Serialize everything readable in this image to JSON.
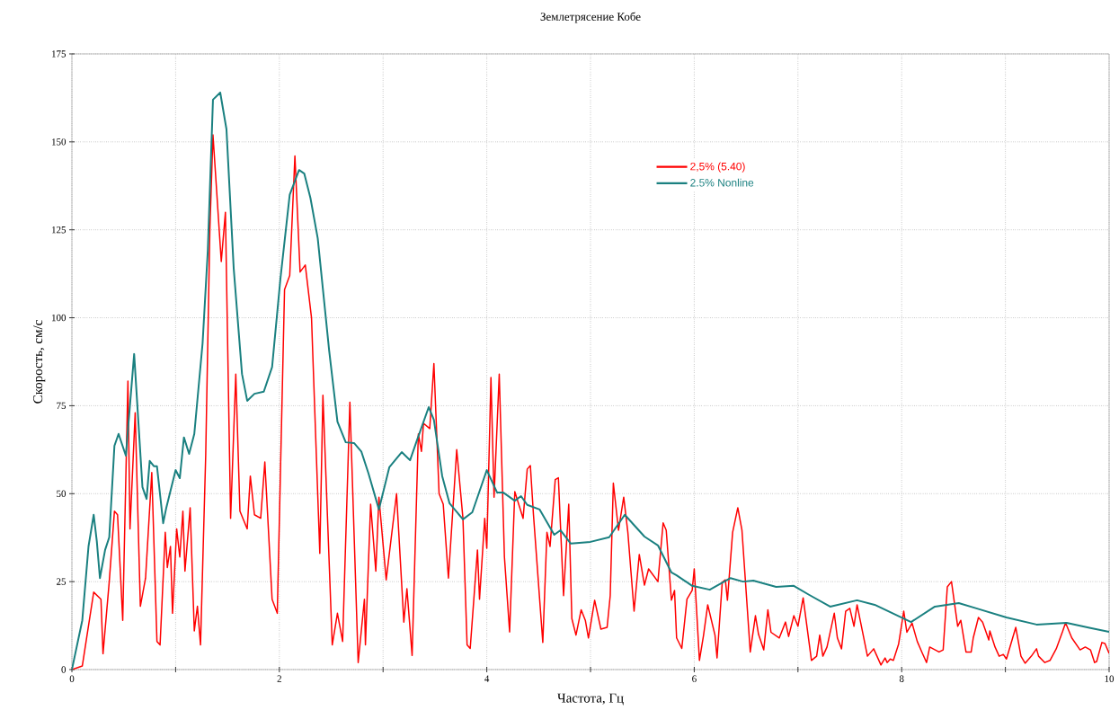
{
  "chart_data": {
    "type": "line",
    "title": "Землетрясение Кобе",
    "xlabel": "Частота, Гц",
    "ylabel": "Скорость, см/с",
    "xlim": [
      0,
      10
    ],
    "ylim": [
      0,
      175
    ],
    "xticks": [
      0,
      {
        "value": 1,
        "label": null
      },
      2,
      {
        "value": 3,
        "label": null
      },
      4,
      {
        "value": 5,
        "label": null
      },
      6,
      {
        "value": 7,
        "label": null
      },
      8,
      {
        "value": 9,
        "label": null
      },
      10
    ],
    "yticks": [
      0,
      25,
      50,
      75,
      100,
      125,
      150,
      175
    ],
    "grid": true,
    "legend": "top right",
    "marker": "none",
    "line_style": "solid",
    "series": [
      {
        "name": "2,5% (5.40)",
        "color": "#ff0000",
        "x": [
          0,
          0.1,
          0.21,
          0.28,
          0.3,
          0.36,
          0.41,
          0.44,
          0.49,
          0.54,
          0.56,
          0.61,
          0.66,
          0.71,
          0.77,
          0.82,
          0.85,
          0.9,
          0.92,
          0.95,
          0.97,
          1.01,
          1.04,
          1.07,
          1.09,
          1.14,
          1.18,
          1.21,
          1.24,
          1.29,
          1.33,
          1.36,
          1.44,
          1.48,
          1.53,
          1.58,
          1.62,
          1.69,
          1.72,
          1.76,
          1.82,
          1.86,
          1.93,
          1.98,
          2.05,
          2.1,
          2.15,
          2.2,
          2.25,
          2.31,
          2.39,
          2.42,
          2.51,
          2.56,
          2.61,
          2.68,
          2.76,
          2.82,
          2.83,
          2.88,
          2.93,
          2.96,
          3.03,
          3.13,
          3.2,
          3.23,
          3.28,
          3.34,
          3.37,
          3.39,
          3.45,
          3.49,
          3.54,
          3.58,
          3.63,
          3.71,
          3.77,
          3.81,
          3.84,
          3.91,
          3.93,
          3.98,
          4.0,
          4.04,
          4.07,
          4.12,
          4.17,
          4.22,
          4.27,
          4.35,
          4.39,
          4.42,
          4.45,
          4.54,
          4.58,
          4.61,
          4.66,
          4.69,
          4.74,
          4.79,
          4.82,
          4.86,
          4.91,
          4.95,
          4.98,
          5.04,
          5.1,
          5.16,
          5.19,
          5.22,
          5.27,
          5.32,
          5.36,
          5.42,
          5.47,
          5.52,
          5.56,
          5.6,
          5.65,
          5.7,
          5.73,
          5.78,
          5.81,
          5.83,
          5.88,
          5.93,
          5.98,
          6.0,
          6.05,
          6.09,
          6.13,
          6.2,
          6.22,
          6.27,
          6.3,
          6.32,
          6.37,
          6.42,
          6.46,
          6.54,
          6.59,
          6.62,
          6.67,
          6.71,
          6.74,
          6.82,
          6.88,
          6.91,
          6.96,
          7.0,
          7.05,
          7.13,
          7.18,
          7.21,
          7.24,
          7.28,
          7.35,
          7.38,
          7.42,
          7.46,
          7.5,
          7.54,
          7.57,
          7.6,
          7.67,
          7.73,
          7.8,
          7.84,
          7.86,
          7.89,
          7.92,
          7.97,
          8.02,
          8.05,
          8.1,
          8.15,
          8.2,
          8.24,
          8.27,
          8.36,
          8.4,
          8.44,
          8.48,
          8.54,
          8.57,
          8.62,
          8.67,
          8.69,
          8.74,
          8.78,
          8.84,
          8.85,
          8.9,
          8.94,
          8.98,
          9.01,
          9.1,
          9.15,
          9.19,
          9.25,
          9.3,
          9.32,
          9.38,
          9.43,
          9.49,
          9.55,
          9.58,
          9.64,
          9.72,
          9.77,
          9.82,
          9.86,
          9.88,
          9.93,
          9.96,
          10.0
        ],
        "values": [
          0,
          1,
          22,
          20,
          4.5,
          25,
          45,
          44,
          14,
          82,
          40,
          73,
          18,
          26,
          56,
          8,
          7,
          39,
          29,
          35,
          16,
          40,
          32,
          45,
          28,
          46,
          11,
          18,
          7,
          61,
          125,
          152,
          116,
          130,
          43,
          84,
          45,
          40,
          55,
          44,
          43,
          59,
          20,
          16,
          108,
          112,
          146,
          113,
          115,
          100,
          33,
          78,
          7,
          16,
          8,
          76,
          2,
          20,
          7,
          47,
          28,
          49,
          25.5,
          50,
          13.5,
          23,
          4,
          67,
          62,
          70,
          68.5,
          87,
          50,
          47,
          26,
          62.5,
          43,
          7,
          6,
          34,
          20,
          43,
          34.5,
          83,
          49,
          84,
          32,
          10.7,
          50.6,
          43,
          57,
          58,
          44,
          7.7,
          39,
          35,
          54,
          54.5,
          21,
          47,
          14.5,
          9.8,
          17,
          14,
          9,
          19.7,
          11.5,
          12,
          21,
          53,
          39.6,
          49,
          39,
          16.6,
          32.7,
          24,
          28.6,
          27,
          25,
          41.7,
          39.6,
          19.7,
          22.5,
          9,
          6,
          20,
          22.5,
          28.6,
          2.6,
          9.8,
          18.4,
          9.8,
          3.3,
          24.8,
          25.5,
          19.7,
          39,
          46,
          39.6,
          5,
          15.3,
          10,
          5.6,
          17,
          10.6,
          9,
          13.5,
          9.4,
          15.3,
          12.3,
          20.4,
          2.6,
          3.8,
          9.8,
          3.8,
          6.4,
          16,
          9,
          5.9,
          16.6,
          17.4,
          12.3,
          18.4,
          14,
          3.8,
          5.9,
          1.3,
          3.3,
          2,
          3,
          2.6,
          7.2,
          16.6,
          10.6,
          13.2,
          8,
          4.6,
          2,
          6.4,
          5,
          5.6,
          23.5,
          25,
          12.3,
          14,
          5,
          5,
          9,
          14.8,
          13.5,
          8.4,
          11,
          6.4,
          3.8,
          4.3,
          3,
          12,
          3.8,
          1.8,
          3.8,
          5.9,
          3.8,
          2,
          2.6,
          5.9,
          10.7,
          13.3,
          9,
          5.6,
          6.4,
          5.6,
          2,
          2.3,
          7.7,
          7.4,
          4.6
        ]
      },
      {
        "name": "2.5% Nonline",
        "color": "#1a8080",
        "x": [
          0,
          0.1,
          0.16,
          0.21,
          0.24,
          0.27,
          0.32,
          0.36,
          0.41,
          0.45,
          0.52,
          0.6,
          0.68,
          0.72,
          0.75,
          0.79,
          0.82,
          0.88,
          0.91,
          1.0,
          1.04,
          1.08,
          1.13,
          1.18,
          1.26,
          1.31,
          1.36,
          1.43,
          1.49,
          1.56,
          1.64,
          1.69,
          1.76,
          1.85,
          1.93,
          2.01,
          2.1,
          2.19,
          2.24,
          2.3,
          2.37,
          2.48,
          2.56,
          2.64,
          2.72,
          2.79,
          2.86,
          2.96,
          3.06,
          3.18,
          3.26,
          3.32,
          3.44,
          3.49,
          3.57,
          3.64,
          3.77,
          3.86,
          4.0,
          4.1,
          4.16,
          4.27,
          4.33,
          4.39,
          4.51,
          4.65,
          4.71,
          4.81,
          5.0,
          5.18,
          5.33,
          5.52,
          5.65,
          5.78,
          5.83,
          5.98,
          6.15,
          6.35,
          6.47,
          6.57,
          6.79,
          6.96,
          7.11,
          7.31,
          7.57,
          7.74,
          8.09,
          8.32,
          8.55,
          8.72,
          9.01,
          9.3,
          9.59,
          9.82,
          10.0
        ],
        "values": [
          0,
          14,
          35,
          44,
          36.5,
          26,
          34,
          37.6,
          63.6,
          67,
          60.8,
          89.7,
          51.9,
          48.5,
          59.3,
          57.8,
          57.8,
          41.6,
          46,
          56.7,
          54.4,
          66,
          61.3,
          67,
          92.8,
          119,
          162,
          164,
          153.6,
          114,
          84,
          76.4,
          78.4,
          79,
          86,
          111,
          135,
          142,
          141,
          134,
          122.6,
          90.7,
          70.5,
          64.6,
          64.4,
          62,
          55.7,
          45.5,
          57.5,
          61.8,
          59.5,
          64.6,
          74.6,
          71,
          55,
          47.3,
          42.7,
          44.7,
          56.7,
          50.3,
          50.3,
          48,
          49.3,
          46.8,
          45.5,
          38.3,
          39.6,
          35.8,
          36.3,
          37.6,
          44,
          37.8,
          35.3,
          27.6,
          26.8,
          23.8,
          22.7,
          26,
          25,
          25.3,
          23.5,
          23.8,
          21.2,
          17.9,
          19.7,
          18.4,
          13.5,
          17.9,
          18.9,
          17.4,
          14.8,
          12.8,
          13.3,
          11.8,
          10.7
        ]
      }
    ]
  }
}
